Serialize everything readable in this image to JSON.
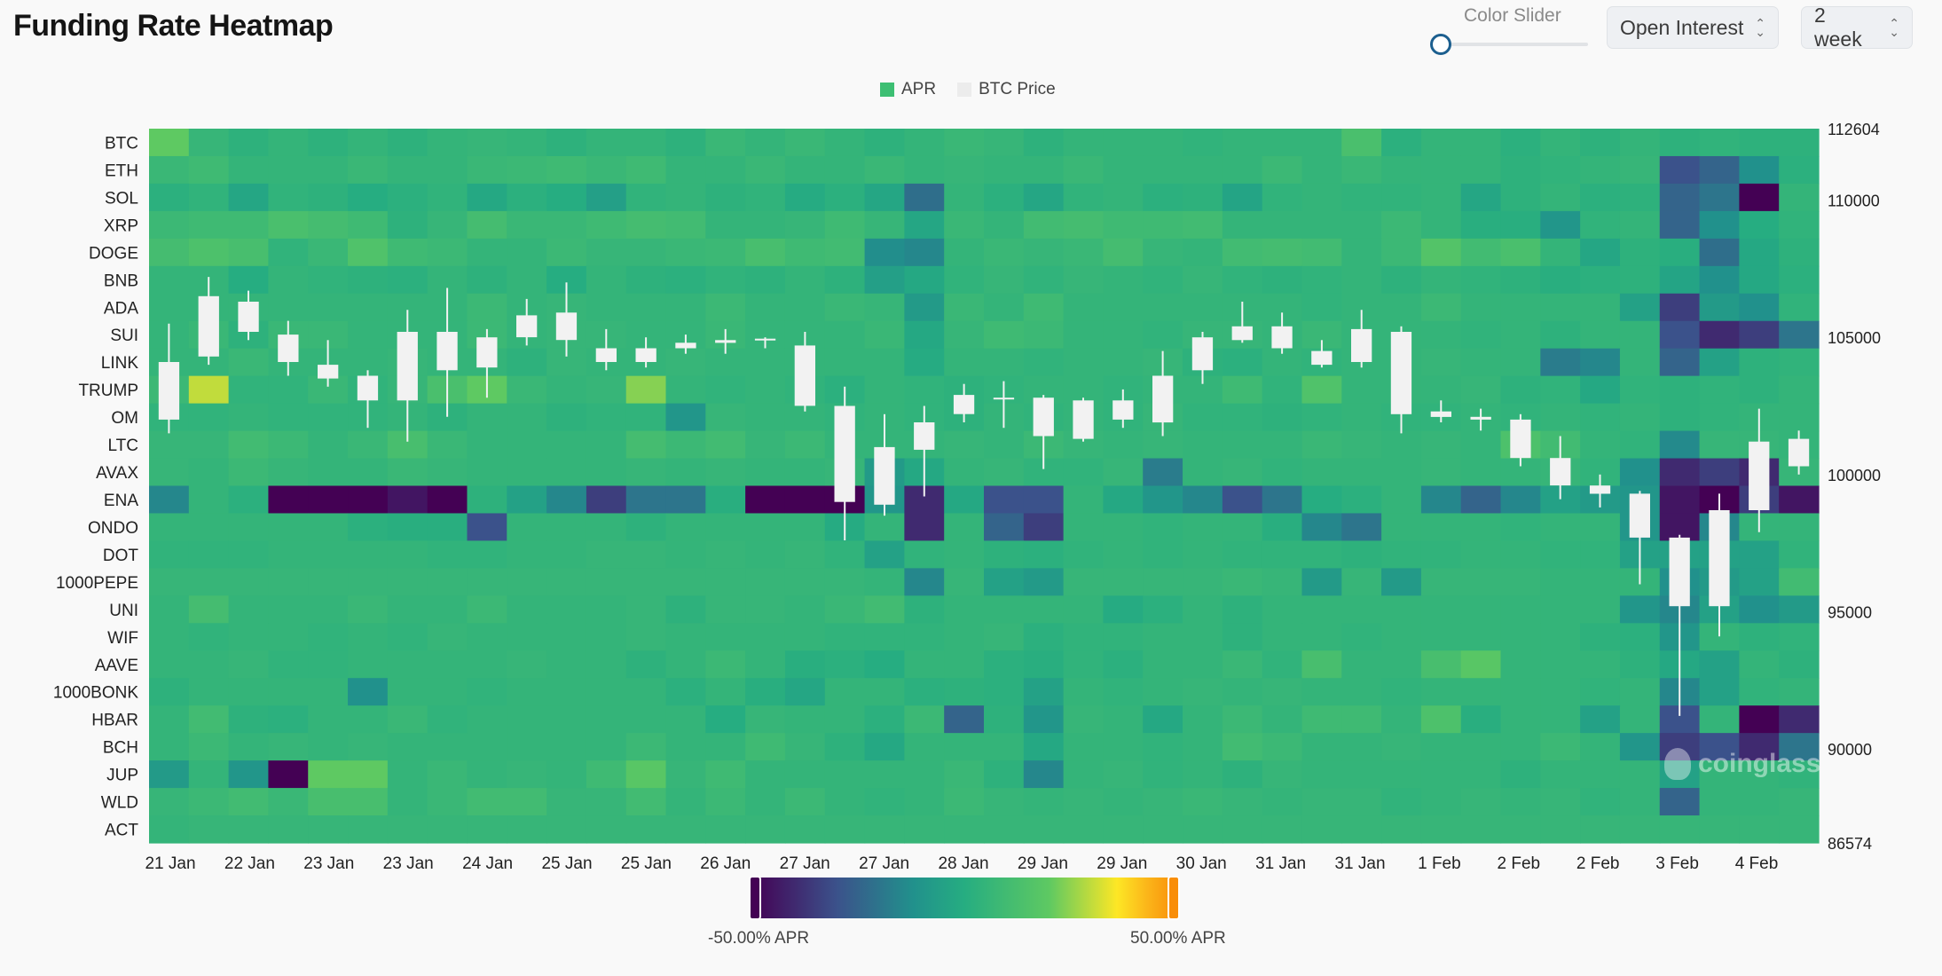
{
  "header": {
    "title": "Funding Rate Heatmap",
    "slider_label": "Color Slider",
    "metric_select": "Open Interest",
    "range_select": "2 week"
  },
  "colors": {
    "viridis": [
      "#440154",
      "#3b528b",
      "#21918c",
      "#26ad81",
      "#5ec962",
      "#fde725",
      "#fbb61a",
      "#f98e09"
    ],
    "background": "#f9f9f9",
    "candle": "#f2f2f2"
  },
  "watermark": "coinglass",
  "chart_data": {
    "type": "heatmap",
    "title": "Funding Rate Heatmap",
    "legend": [
      {
        "name": "APR",
        "color": "#3dbf73"
      },
      {
        "name": "BTC Price",
        "color": "#ececec"
      }
    ],
    "symbols": [
      "BTC",
      "ETH",
      "SOL",
      "XRP",
      "DOGE",
      "BNB",
      "ADA",
      "SUI",
      "LINK",
      "TRUMP",
      "OM",
      "LTC",
      "AVAX",
      "ENA",
      "ONDO",
      "DOT",
      "1000PEPE",
      "UNI",
      "WIF",
      "AAVE",
      "1000BONK",
      "HBAR",
      "BCH",
      "JUP",
      "WLD",
      "ACT"
    ],
    "x_tick_labels": [
      "21 Jan",
      "22 Jan",
      "23 Jan",
      "23 Jan",
      "24 Jan",
      "25 Jan",
      "25 Jan",
      "26 Jan",
      "27 Jan",
      "27 Jan",
      "28 Jan",
      "29 Jan",
      "29 Jan",
      "30 Jan",
      "31 Jan",
      "31 Jan",
      "1 Feb",
      "2 Feb",
      "2 Feb",
      "3 Feb",
      "4 Feb"
    ],
    "y2_ticks": [
      112604,
      110000,
      105000,
      100000,
      95000,
      90000,
      86574
    ],
    "y2_range": [
      86574,
      112604
    ],
    "color_range_apr": [
      -50,
      50
    ],
    "color_min_label": "-50.00% APR",
    "color_max_label": "50.00% APR",
    "n_columns": 42,
    "apr_matrix": [
      [
        20,
        6,
        3,
        5,
        3,
        5,
        3,
        5,
        6,
        5,
        3,
        5,
        5,
        3,
        7,
        5,
        7,
        5,
        3,
        5,
        7,
        6,
        3,
        5,
        5,
        5,
        4,
        5,
        5,
        5,
        13,
        2,
        5,
        5,
        2,
        5,
        3,
        5,
        3,
        4,
        3,
        3
      ],
      [
        7,
        9,
        5,
        5,
        5,
        7,
        5,
        5,
        7,
        8,
        9,
        7,
        9,
        5,
        5,
        7,
        5,
        5,
        7,
        5,
        6,
        5,
        5,
        7,
        5,
        5,
        5,
        5,
        8,
        5,
        7,
        5,
        5,
        5,
        3,
        4,
        5,
        6,
        -30,
        -25,
        -12,
        2
      ],
      [
        2,
        4,
        -3,
        4,
        3,
        0,
        2,
        4,
        -2,
        2,
        0,
        -6,
        4,
        5,
        3,
        4,
        -1,
        2,
        -3,
        -22,
        5,
        2,
        -3,
        4,
        5,
        2,
        3,
        -4,
        4,
        5,
        4,
        4,
        5,
        -3,
        3,
        5,
        2,
        3,
        -25,
        -20,
        -50,
        5
      ],
      [
        8,
        9,
        9,
        13,
        11,
        9,
        3,
        6,
        11,
        7,
        7,
        9,
        11,
        10,
        5,
        5,
        6,
        9,
        6,
        -3,
        7,
        5,
        10,
        11,
        9,
        9,
        10,
        5,
        5,
        5,
        5,
        8,
        5,
        1,
        1,
        -10,
        4,
        5,
        -25,
        -12,
        0,
        4
      ],
      [
        11,
        14,
        12,
        4,
        7,
        15,
        9,
        8,
        5,
        5,
        8,
        6,
        6,
        7,
        8,
        12,
        9,
        10,
        -13,
        -15,
        5,
        7,
        6,
        7,
        11,
        6,
        5,
        10,
        11,
        10,
        5,
        8,
        16,
        10,
        13,
        5,
        -3,
        3,
        1,
        -22,
        -2,
        3
      ],
      [
        5,
        5,
        0,
        5,
        4,
        3,
        2,
        5,
        3,
        5,
        0,
        5,
        3,
        2,
        4,
        3,
        5,
        3,
        -6,
        -2,
        4,
        6,
        4,
        6,
        5,
        4,
        6,
        4,
        3,
        4,
        5,
        3,
        5,
        4,
        3,
        1,
        2,
        3,
        -4,
        -12,
        -2,
        2
      ],
      [
        5,
        5,
        5,
        5,
        5,
        5,
        5,
        5,
        8,
        5,
        6,
        5,
        5,
        5,
        8,
        5,
        5,
        7,
        6,
        -8,
        7,
        5,
        9,
        5,
        5,
        5,
        5,
        5,
        5,
        4,
        5,
        5,
        8,
        5,
        5,
        5,
        5,
        -5,
        -35,
        -8,
        -12,
        4
      ],
      [
        5,
        7,
        3,
        7,
        7,
        5,
        5,
        5,
        8,
        5,
        6,
        6,
        5,
        5,
        7,
        5,
        5,
        5,
        7,
        -2,
        6,
        9,
        8,
        5,
        5,
        4,
        6,
        6,
        5,
        7,
        5,
        5,
        5,
        4,
        5,
        3,
        5,
        5,
        -30,
        -40,
        -35,
        -20
      ],
      [
        5,
        5,
        7,
        5,
        5,
        5,
        6,
        5,
        5,
        3,
        6,
        5,
        5,
        6,
        5,
        5,
        5,
        5,
        5,
        -1,
        5,
        5,
        4,
        5,
        5,
        6,
        3,
        2,
        5,
        4,
        5,
        5,
        6,
        5,
        5,
        -18,
        -15,
        5,
        -25,
        -5,
        3,
        4
      ],
      [
        8,
        30,
        4,
        4,
        7,
        4,
        6,
        13,
        20,
        7,
        5,
        6,
        24,
        5,
        4,
        5,
        4,
        2,
        5,
        4,
        3,
        4,
        5,
        5,
        4,
        5,
        5,
        9,
        4,
        15,
        5,
        5,
        5,
        6,
        3,
        4,
        -2,
        4,
        3,
        4,
        3,
        5
      ],
      [
        4,
        4,
        5,
        4,
        4,
        4,
        5,
        3,
        5,
        5,
        3,
        4,
        4,
        -10,
        6,
        5,
        5,
        4,
        5,
        4,
        3,
        5,
        4,
        5,
        4,
        6,
        4,
        4,
        3,
        4,
        5,
        4,
        4,
        5,
        4,
        5,
        4,
        5,
        3,
        4,
        5,
        5
      ],
      [
        6,
        6,
        10,
        8,
        5,
        7,
        12,
        7,
        5,
        5,
        5,
        5,
        11,
        8,
        10,
        6,
        8,
        5,
        5,
        5,
        6,
        5,
        8,
        6,
        5,
        6,
        5,
        5,
        5,
        7,
        6,
        5,
        6,
        5,
        14,
        10,
        5,
        4,
        -14,
        6,
        6,
        5
      ],
      [
        6,
        5,
        8,
        6,
        5,
        5,
        7,
        6,
        5,
        5,
        5,
        5,
        6,
        5,
        6,
        5,
        5,
        6,
        -8,
        -2,
        5,
        6,
        4,
        4,
        6,
        -18,
        5,
        6,
        4,
        5,
        5,
        5,
        6,
        5,
        5,
        6,
        4,
        -12,
        -40,
        -35,
        -40,
        6
      ],
      [
        -15,
        5,
        2,
        -50,
        -50,
        -50,
        -45,
        -50,
        3,
        -5,
        -15,
        -35,
        -20,
        -20,
        1,
        -50,
        -50,
        -50,
        -10,
        -40,
        -2,
        -30,
        -30,
        5,
        -2,
        -10,
        -15,
        -30,
        -20,
        0,
        2,
        5,
        -15,
        -25,
        -15,
        -5,
        -8,
        -10,
        -45,
        -50,
        -35,
        -45
      ],
      [
        5,
        5,
        5,
        5,
        5,
        2,
        1,
        1,
        -30,
        5,
        5,
        5,
        3,
        5,
        5,
        5,
        5,
        -1,
        5,
        -40,
        5,
        -25,
        -35,
        5,
        5,
        4,
        5,
        5,
        1,
        -15,
        -20,
        5,
        5,
        5,
        4,
        5,
        5,
        -10,
        -45,
        -15,
        5,
        5
      ],
      [
        4,
        4,
        4,
        5,
        5,
        5,
        5,
        4,
        4,
        5,
        5,
        6,
        6,
        5,
        6,
        5,
        6,
        4,
        -5,
        4,
        5,
        3,
        2,
        4,
        5,
        4,
        5,
        4,
        4,
        4,
        3,
        4,
        4,
        5,
        5,
        4,
        4,
        -5,
        -5,
        -5,
        -5,
        4
      ],
      [
        6,
        6,
        6,
        6,
        6,
        6,
        6,
        6,
        6,
        6,
        6,
        6,
        6,
        6,
        6,
        6,
        6,
        6,
        5,
        -15,
        6,
        -5,
        -8,
        6,
        6,
        6,
        6,
        7,
        6,
        -8,
        6,
        -8,
        6,
        6,
        6,
        5,
        5,
        5,
        -12,
        -8,
        -5,
        10
      ],
      [
        5,
        11,
        5,
        5,
        5,
        7,
        5,
        5,
        8,
        5,
        5,
        5,
        6,
        3,
        6,
        6,
        5,
        7,
        10,
        3,
        5,
        5,
        5,
        5,
        -1,
        2,
        5,
        3,
        5,
        5,
        5,
        5,
        5,
        5,
        5,
        5,
        5,
        -10,
        -15,
        -5,
        -12,
        -8
      ],
      [
        5,
        4,
        5,
        5,
        4,
        5,
        4,
        6,
        5,
        5,
        5,
        5,
        6,
        5,
        5,
        5,
        5,
        4,
        4,
        4,
        5,
        6,
        2,
        4,
        4,
        5,
        5,
        3,
        5,
        5,
        4,
        5,
        5,
        5,
        5,
        5,
        3,
        2,
        -10,
        5,
        3,
        4
      ],
      [
        5,
        5,
        6,
        4,
        4,
        5,
        5,
        5,
        5,
        6,
        5,
        5,
        3,
        5,
        8,
        5,
        1,
        2,
        0,
        5,
        5,
        2,
        1,
        4,
        2,
        5,
        5,
        7,
        4,
        12,
        5,
        5,
        12,
        18,
        5,
        5,
        5,
        3,
        -2,
        -5,
        5,
        3
      ],
      [
        3,
        5,
        5,
        5,
        5,
        -12,
        5,
        5,
        4,
        5,
        5,
        5,
        5,
        2,
        5,
        1,
        -3,
        5,
        5,
        2,
        3,
        2,
        -5,
        5,
        4,
        5,
        6,
        5,
        6,
        5,
        5,
        4,
        5,
        5,
        5,
        5,
        4,
        5,
        -15,
        -5,
        4,
        5
      ],
      [
        5,
        10,
        3,
        2,
        5,
        5,
        7,
        4,
        5,
        5,
        5,
        5,
        5,
        5,
        0,
        6,
        5,
        5,
        2,
        8,
        -25,
        3,
        -10,
        6,
        5,
        -2,
        5,
        8,
        5,
        9,
        9,
        5,
        14,
        1,
        5,
        5,
        -5,
        5,
        -30,
        5,
        -50,
        -40
      ],
      [
        5,
        8,
        5,
        6,
        5,
        6,
        5,
        5,
        5,
        5,
        5,
        5,
        8,
        5,
        5,
        9,
        6,
        3,
        -2,
        5,
        5,
        5,
        -2,
        5,
        5,
        4,
        5,
        10,
        8,
        5,
        5,
        6,
        5,
        5,
        5,
        8,
        5,
        -10,
        -35,
        -30,
        -40,
        -20
      ],
      [
        -8,
        5,
        -10,
        -50,
        20,
        20,
        5,
        7,
        5,
        6,
        5,
        9,
        18,
        6,
        9,
        5,
        5,
        5,
        5,
        5,
        7,
        3,
        -15,
        5,
        6,
        4,
        5,
        3,
        6,
        5,
        5,
        5,
        5,
        5,
        3,
        5,
        5,
        5,
        -5,
        5,
        5,
        4
      ],
      [
        6,
        8,
        10,
        7,
        12,
        12,
        5,
        7,
        10,
        10,
        6,
        6,
        10,
        5,
        8,
        5,
        8,
        5,
        4,
        5,
        8,
        6,
        5,
        6,
        5,
        6,
        7,
        6,
        5,
        6,
        6,
        4,
        5,
        6,
        5,
        6,
        4,
        5,
        -25,
        5,
        5,
        6
      ],
      [
        5,
        6,
        6,
        6,
        6,
        6,
        6,
        6,
        6,
        6,
        6,
        6,
        6,
        6,
        6,
        6,
        6,
        6,
        6,
        6,
        6,
        6,
        6,
        6,
        6,
        6,
        6,
        6,
        6,
        6,
        6,
        6,
        6,
        6,
        6,
        6,
        6,
        6,
        6,
        6,
        6,
        6
      ]
    ],
    "btc_candles": [
      {
        "x": 0.5,
        "o": 102000,
        "h": 105500,
        "l": 101500,
        "c": 104100
      },
      {
        "x": 1.5,
        "o": 104300,
        "h": 107200,
        "l": 104000,
        "c": 106500
      },
      {
        "x": 2.5,
        "o": 105200,
        "h": 106700,
        "l": 104900,
        "c": 106300
      },
      {
        "x": 3.5,
        "o": 105100,
        "h": 105600,
        "l": 103600,
        "c": 104100
      },
      {
        "x": 4.5,
        "o": 104000,
        "h": 104900,
        "l": 103200,
        "c": 103500
      },
      {
        "x": 5.5,
        "o": 103600,
        "h": 103800,
        "l": 101700,
        "c": 102700
      },
      {
        "x": 6.5,
        "o": 102700,
        "h": 106000,
        "l": 101200,
        "c": 105200
      },
      {
        "x": 7.5,
        "o": 105200,
        "h": 106800,
        "l": 102100,
        "c": 103800
      },
      {
        "x": 8.5,
        "o": 105000,
        "h": 105300,
        "l": 102800,
        "c": 103900
      },
      {
        "x": 9.5,
        "o": 105000,
        "h": 106400,
        "l": 104700,
        "c": 105800
      },
      {
        "x": 10.5,
        "o": 104900,
        "h": 107000,
        "l": 104300,
        "c": 105900
      },
      {
        "x": 11.5,
        "o": 104100,
        "h": 105300,
        "l": 103800,
        "c": 104600
      },
      {
        "x": 12.5,
        "o": 104100,
        "h": 105000,
        "l": 103900,
        "c": 104600
      },
      {
        "x": 13.5,
        "o": 104600,
        "h": 105100,
        "l": 104400,
        "c": 104800
      },
      {
        "x": 14.5,
        "o": 104800,
        "h": 105300,
        "l": 104400,
        "c": 104900
      },
      {
        "x": 15.5,
        "o": 104900,
        "h": 105000,
        "l": 104600,
        "c": 104950
      },
      {
        "x": 16.5,
        "o": 104700,
        "h": 105200,
        "l": 102300,
        "c": 102500
      },
      {
        "x": 17.5,
        "o": 102500,
        "h": 103200,
        "l": 97600,
        "c": 99000
      },
      {
        "x": 18.5,
        "o": 101000,
        "h": 102200,
        "l": 98500,
        "c": 98900
      },
      {
        "x": 19.5,
        "o": 100900,
        "h": 102500,
        "l": 99200,
        "c": 101900
      },
      {
        "x": 20.5,
        "o": 102200,
        "h": 103300,
        "l": 101900,
        "c": 102900
      },
      {
        "x": 21.5,
        "o": 102800,
        "h": 103400,
        "l": 101700,
        "c": 102800
      },
      {
        "x": 22.5,
        "o": 102800,
        "h": 102900,
        "l": 100200,
        "c": 101400
      },
      {
        "x": 23.5,
        "o": 102700,
        "h": 102800,
        "l": 101200,
        "c": 101300
      },
      {
        "x": 24.5,
        "o": 102700,
        "h": 103100,
        "l": 101700,
        "c": 102000
      },
      {
        "x": 25.5,
        "o": 101900,
        "h": 104500,
        "l": 101400,
        "c": 103600
      },
      {
        "x": 26.5,
        "o": 103800,
        "h": 105200,
        "l": 103300,
        "c": 105000
      },
      {
        "x": 27.5,
        "o": 104900,
        "h": 106300,
        "l": 104800,
        "c": 105400
      },
      {
        "x": 28.5,
        "o": 105400,
        "h": 105900,
        "l": 104400,
        "c": 104600
      },
      {
        "x": 29.5,
        "o": 104500,
        "h": 104900,
        "l": 103900,
        "c": 104000
      },
      {
        "x": 30.5,
        "o": 104100,
        "h": 106000,
        "l": 103900,
        "c": 105300
      },
      {
        "x": 31.5,
        "o": 105200,
        "h": 105400,
        "l": 101500,
        "c": 102200
      },
      {
        "x": 32.5,
        "o": 102300,
        "h": 102700,
        "l": 101900,
        "c": 102100
      },
      {
        "x": 33.5,
        "o": 102100,
        "h": 102400,
        "l": 101600,
        "c": 102000
      },
      {
        "x": 34.5,
        "o": 102000,
        "h": 102200,
        "l": 100300,
        "c": 100600
      },
      {
        "x": 35.5,
        "o": 100600,
        "h": 101400,
        "l": 99100,
        "c": 99600
      },
      {
        "x": 36.5,
        "o": 99600,
        "h": 100000,
        "l": 98800,
        "c": 99300
      },
      {
        "x": 37.5,
        "o": 99300,
        "h": 99400,
        "l": 96000,
        "c": 97700
      },
      {
        "x": 38.5,
        "o": 97700,
        "h": 97800,
        "l": 91200,
        "c": 95200
      },
      {
        "x": 39.5,
        "o": 95200,
        "h": 99300,
        "l": 94100,
        "c": 98700
      },
      {
        "x": 40.5,
        "o": 98700,
        "h": 102400,
        "l": 97900,
        "c": 101200
      },
      {
        "x": 41.5,
        "o": 100300,
        "h": 101600,
        "l": 100000,
        "c": 101300
      }
    ]
  }
}
